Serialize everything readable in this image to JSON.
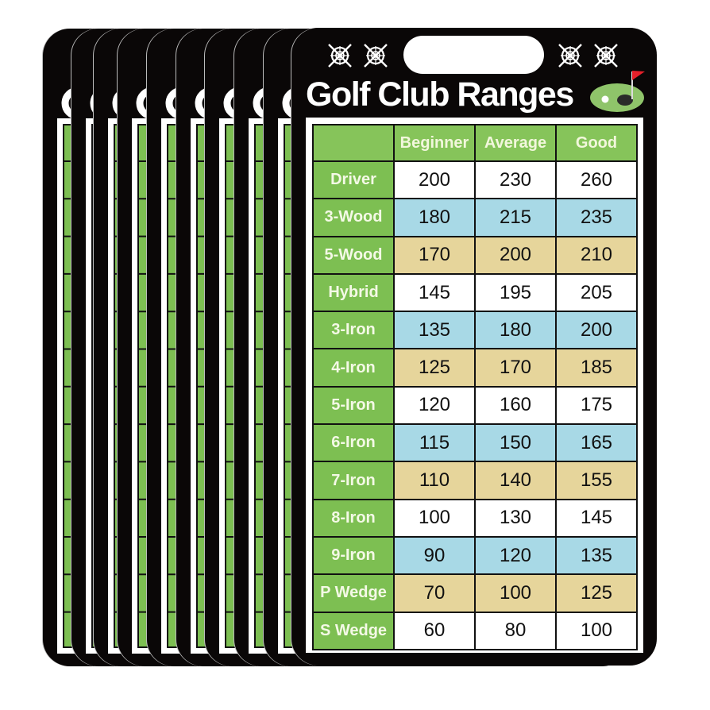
{
  "card": {
    "title": "Golf Club Ranges",
    "icons": [
      "target-crosshair-icon",
      "golf-green-flag-icon"
    ],
    "columns": [
      "",
      "Beginner",
      "Average",
      "Good"
    ],
    "rows": [
      {
        "club": "Driver",
        "values": [
          "200",
          "230",
          "260"
        ]
      },
      {
        "club": "3-Wood",
        "values": [
          "180",
          "215",
          "235"
        ]
      },
      {
        "club": "5-Wood",
        "values": [
          "170",
          "200",
          "210"
        ]
      },
      {
        "club": "Hybrid",
        "values": [
          "145",
          "195",
          "205"
        ]
      },
      {
        "club": "3-Iron",
        "values": [
          "135",
          "180",
          "200"
        ]
      },
      {
        "club": "4-Iron",
        "values": [
          "125",
          "170",
          "185"
        ]
      },
      {
        "club": "5-Iron",
        "values": [
          "120",
          "160",
          "175"
        ]
      },
      {
        "club": "6-Iron",
        "values": [
          "115",
          "150",
          "165"
        ]
      },
      {
        "club": "7-Iron",
        "values": [
          "110",
          "140",
          "155"
        ]
      },
      {
        "club": "8-Iron",
        "values": [
          "100",
          "130",
          "145"
        ]
      },
      {
        "club": "9-Iron",
        "values": [
          "90",
          "120",
          "135"
        ]
      },
      {
        "club": "P Wedge",
        "values": [
          "70",
          "100",
          "125"
        ]
      },
      {
        "club": "S Wedge",
        "values": [
          "60",
          "80",
          "100"
        ]
      }
    ]
  },
  "colors": {
    "card_bg": "#0a0707",
    "header_green": "#86c45a",
    "club_green": "#7dbf52",
    "row_white": "#ffffff",
    "row_blue": "#a8d9e6",
    "row_tan": "#e6d59b",
    "flag_red": "#e5202a"
  },
  "stack_count": 10
}
